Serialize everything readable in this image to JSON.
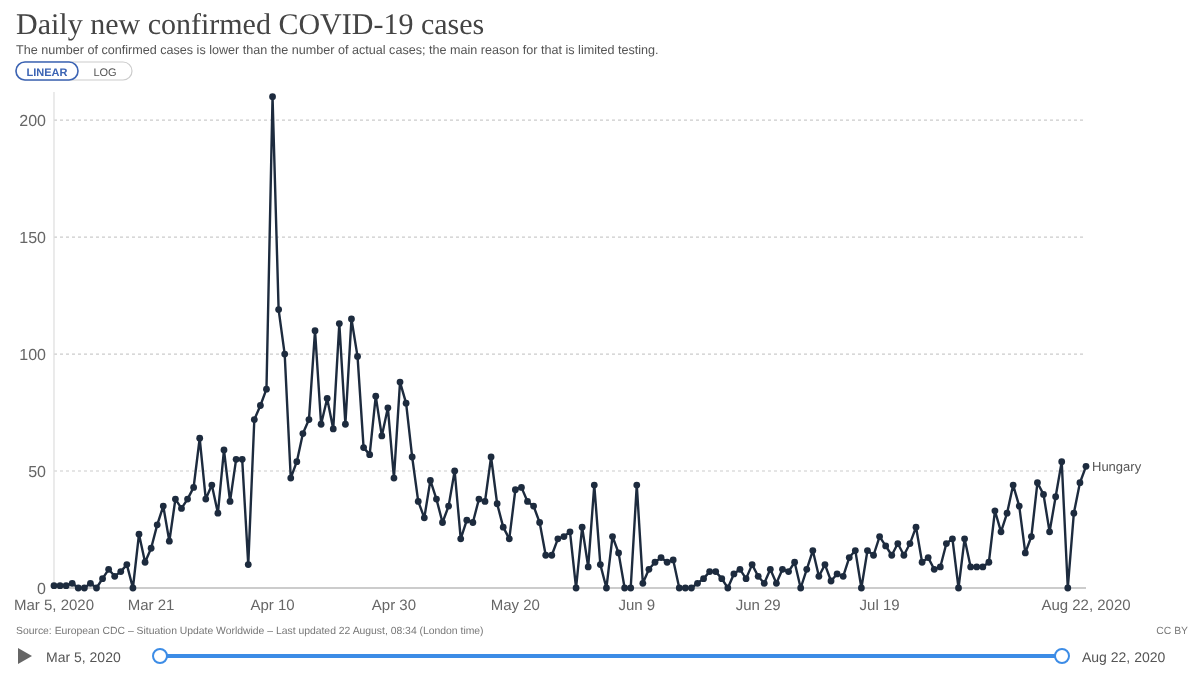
{
  "chart_data": {
    "type": "line",
    "title": "Daily new confirmed COVID-19 cases",
    "subtitle": "The number of confirmed cases is lower than the number of actual cases; the main reason for that is limited testing.",
    "annotations": [
      "Source: European CDC – Situation Update Worldwide – Last updated 22 August, 08:34 (London time)",
      "CC BY",
      "LINEAR",
      "LOG",
      "Mar 5, 2020",
      "Aug 22, 2020"
    ],
    "x": [
      "2020-03-05",
      "2020-03-06",
      "2020-03-07",
      "2020-03-08",
      "2020-03-09",
      "2020-03-10",
      "2020-03-11",
      "2020-03-12",
      "2020-03-13",
      "2020-03-14",
      "2020-03-15",
      "2020-03-16",
      "2020-03-17",
      "2020-03-18",
      "2020-03-19",
      "2020-03-20",
      "2020-03-21",
      "2020-03-22",
      "2020-03-23",
      "2020-03-24",
      "2020-03-25",
      "2020-03-26",
      "2020-03-27",
      "2020-03-28",
      "2020-03-29",
      "2020-03-30",
      "2020-03-31",
      "2020-04-01",
      "2020-04-02",
      "2020-04-03",
      "2020-04-04",
      "2020-04-05",
      "2020-04-06",
      "2020-04-07",
      "2020-04-08",
      "2020-04-09",
      "2020-04-10",
      "2020-04-11",
      "2020-04-12",
      "2020-04-13",
      "2020-04-14",
      "2020-04-15",
      "2020-04-16",
      "2020-04-17",
      "2020-04-18",
      "2020-04-19",
      "2020-04-20",
      "2020-04-21",
      "2020-04-22",
      "2020-04-23",
      "2020-04-24",
      "2020-04-25",
      "2020-04-26",
      "2020-04-27",
      "2020-04-28",
      "2020-04-29",
      "2020-04-30",
      "2020-05-01",
      "2020-05-02",
      "2020-05-03",
      "2020-05-04",
      "2020-05-05",
      "2020-05-06",
      "2020-05-07",
      "2020-05-08",
      "2020-05-09",
      "2020-05-10",
      "2020-05-11",
      "2020-05-12",
      "2020-05-13",
      "2020-05-14",
      "2020-05-15",
      "2020-05-16",
      "2020-05-17",
      "2020-05-18",
      "2020-05-19",
      "2020-05-20",
      "2020-05-21",
      "2020-05-22",
      "2020-05-23",
      "2020-05-24",
      "2020-05-25",
      "2020-05-26",
      "2020-05-27",
      "2020-05-28",
      "2020-05-29",
      "2020-05-30",
      "2020-05-31",
      "2020-06-01",
      "2020-06-02",
      "2020-06-03",
      "2020-06-04",
      "2020-06-05",
      "2020-06-06",
      "2020-06-07",
      "2020-06-08",
      "2020-06-09",
      "2020-06-10",
      "2020-06-11",
      "2020-06-12",
      "2020-06-13",
      "2020-06-14",
      "2020-06-15",
      "2020-06-16",
      "2020-06-17",
      "2020-06-18",
      "2020-06-19",
      "2020-06-20",
      "2020-06-21",
      "2020-06-22",
      "2020-06-23",
      "2020-06-24",
      "2020-06-25",
      "2020-06-26",
      "2020-06-27",
      "2020-06-28",
      "2020-06-29",
      "2020-06-30",
      "2020-07-01",
      "2020-07-02",
      "2020-07-03",
      "2020-07-04",
      "2020-07-05",
      "2020-07-06",
      "2020-07-07",
      "2020-07-08",
      "2020-07-09",
      "2020-07-10",
      "2020-07-11",
      "2020-07-12",
      "2020-07-13",
      "2020-07-14",
      "2020-07-15",
      "2020-07-16",
      "2020-07-17",
      "2020-07-18",
      "2020-07-19",
      "2020-07-20",
      "2020-07-21",
      "2020-07-22",
      "2020-07-23",
      "2020-07-24",
      "2020-07-25",
      "2020-07-26",
      "2020-07-27",
      "2020-07-28",
      "2020-07-29",
      "2020-07-30",
      "2020-07-31",
      "2020-08-01",
      "2020-08-02",
      "2020-08-03",
      "2020-08-04",
      "2020-08-05",
      "2020-08-06",
      "2020-08-07",
      "2020-08-08",
      "2020-08-09",
      "2020-08-10",
      "2020-08-11",
      "2020-08-12",
      "2020-08-13",
      "2020-08-14",
      "2020-08-15",
      "2020-08-16",
      "2020-08-17",
      "2020-08-18",
      "2020-08-19",
      "2020-08-20",
      "2020-08-21",
      "2020-08-22"
    ],
    "series": [
      {
        "name": "Hungary",
        "color": "#1d2b3e",
        "values": [
          1,
          1,
          1,
          2,
          0,
          0,
          2,
          0,
          4,
          8,
          5,
          7,
          10,
          0,
          23,
          11,
          17,
          27,
          35,
          20,
          38,
          34,
          38,
          43,
          64,
          38,
          44,
          32,
          59,
          37,
          55,
          55,
          10,
          72,
          78,
          85,
          210,
          119,
          100,
          47,
          54,
          66,
          72,
          110,
          70,
          81,
          68,
          113,
          70,
          115,
          99,
          60,
          57,
          82,
          65,
          77,
          47,
          88,
          79,
          56,
          37,
          30,
          46,
          38,
          28,
          35,
          50,
          21,
          29,
          28,
          38,
          37,
          56,
          36,
          26,
          21,
          42,
          43,
          37,
          35,
          28,
          14,
          14,
          21,
          22,
          24,
          0,
          26,
          9,
          44,
          10,
          0,
          22,
          15,
          0,
          0,
          44,
          2,
          8,
          11,
          13,
          11,
          12,
          0,
          0,
          0,
          2,
          4,
          7,
          7,
          4,
          0,
          6,
          8,
          4,
          10,
          5,
          2,
          8,
          2,
          8,
          7,
          11,
          0,
          8,
          16,
          5,
          10,
          3,
          6,
          5,
          13,
          16,
          0,
          16,
          14,
          22,
          18,
          14,
          19,
          14,
          19,
          26,
          11,
          13,
          8,
          9,
          19,
          21,
          0,
          21,
          9,
          9,
          9,
          11,
          33,
          24,
          32,
          44,
          35,
          15,
          22,
          45,
          40,
          24,
          39,
          54,
          0,
          32,
          45,
          52
        ]
      }
    ],
    "xlim": [
      "2020-03-05",
      "2020-08-22"
    ],
    "xticks": [
      {
        "value": "2020-03-05",
        "label": "Mar 5, 2020"
      },
      {
        "value": "2020-03-21",
        "label": "Mar 21"
      },
      {
        "value": "2020-04-10",
        "label": "Apr 10"
      },
      {
        "value": "2020-04-30",
        "label": "Apr 30"
      },
      {
        "value": "2020-05-20",
        "label": "May 20"
      },
      {
        "value": "2020-06-09",
        "label": "Jun 9"
      },
      {
        "value": "2020-06-29",
        "label": "Jun 29"
      },
      {
        "value": "2020-07-19",
        "label": "Jul 19"
      },
      {
        "value": "2020-08-22",
        "label": "Aug 22, 2020"
      }
    ],
    "ylim": [
      0,
      212
    ],
    "yticks": [
      0,
      50,
      100,
      150,
      200
    ],
    "grid": "y",
    "legend": "right",
    "marker": "circle",
    "line_style": "solid"
  }
}
